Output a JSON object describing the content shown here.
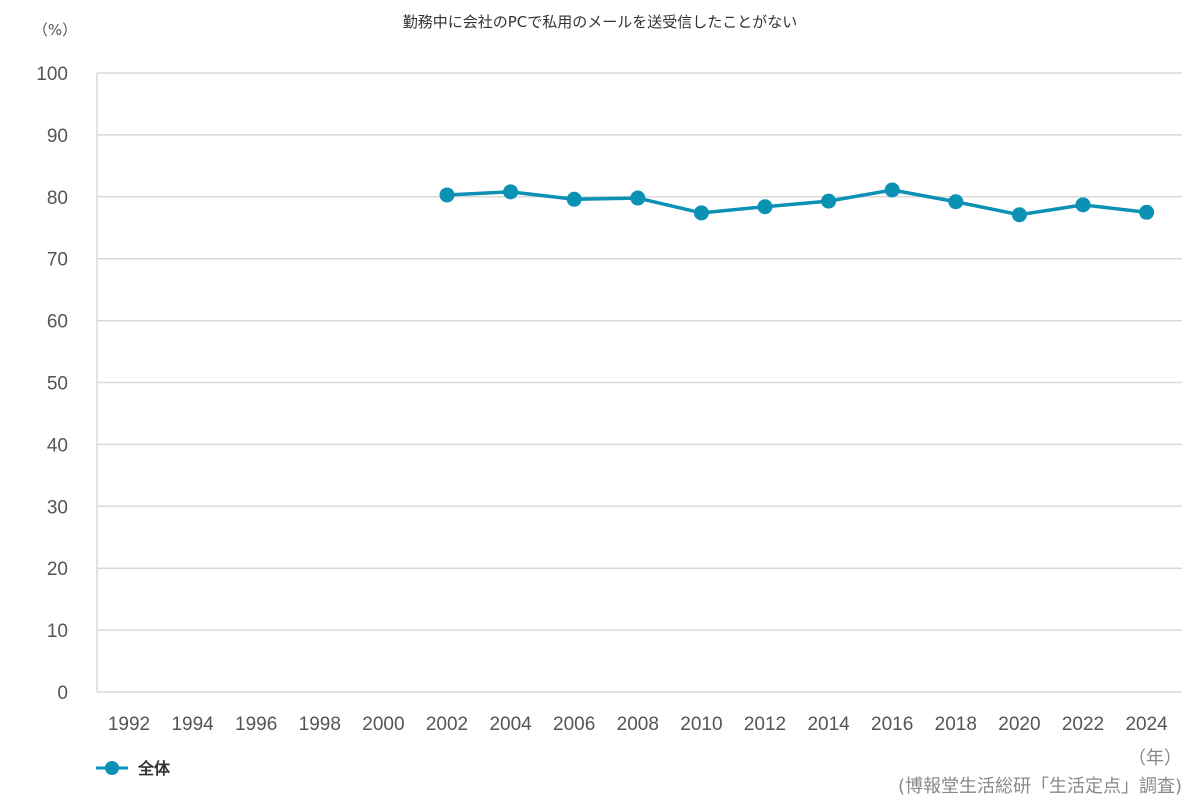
{
  "chart_data": {
    "type": "line",
    "title": "勤務中に会社のPCで私用のメールを送受信したことがない",
    "ylabel": "（%）",
    "xlabel": "（年）",
    "source": "(博報堂生活総研「生活定点」調査)",
    "ylim": [
      0,
      100
    ],
    "yticks": [
      0,
      10,
      20,
      30,
      40,
      50,
      60,
      70,
      80,
      90,
      100
    ],
    "grid": true,
    "legend_placement": "bottom-left",
    "categories": [
      "1992",
      "1994",
      "1996",
      "1998",
      "2000",
      "2002",
      "2004",
      "2006",
      "2008",
      "2010",
      "2012",
      "2014",
      "2016",
      "2018",
      "2020",
      "2022",
      "2024"
    ],
    "series": [
      {
        "name": "全体",
        "color": "#0a91b4",
        "values": [
          null,
          null,
          null,
          null,
          null,
          80.3,
          80.8,
          79.6,
          79.8,
          77.4,
          78.4,
          79.3,
          81.1,
          79.2,
          77.1,
          78.7,
          77.5
        ]
      }
    ]
  }
}
